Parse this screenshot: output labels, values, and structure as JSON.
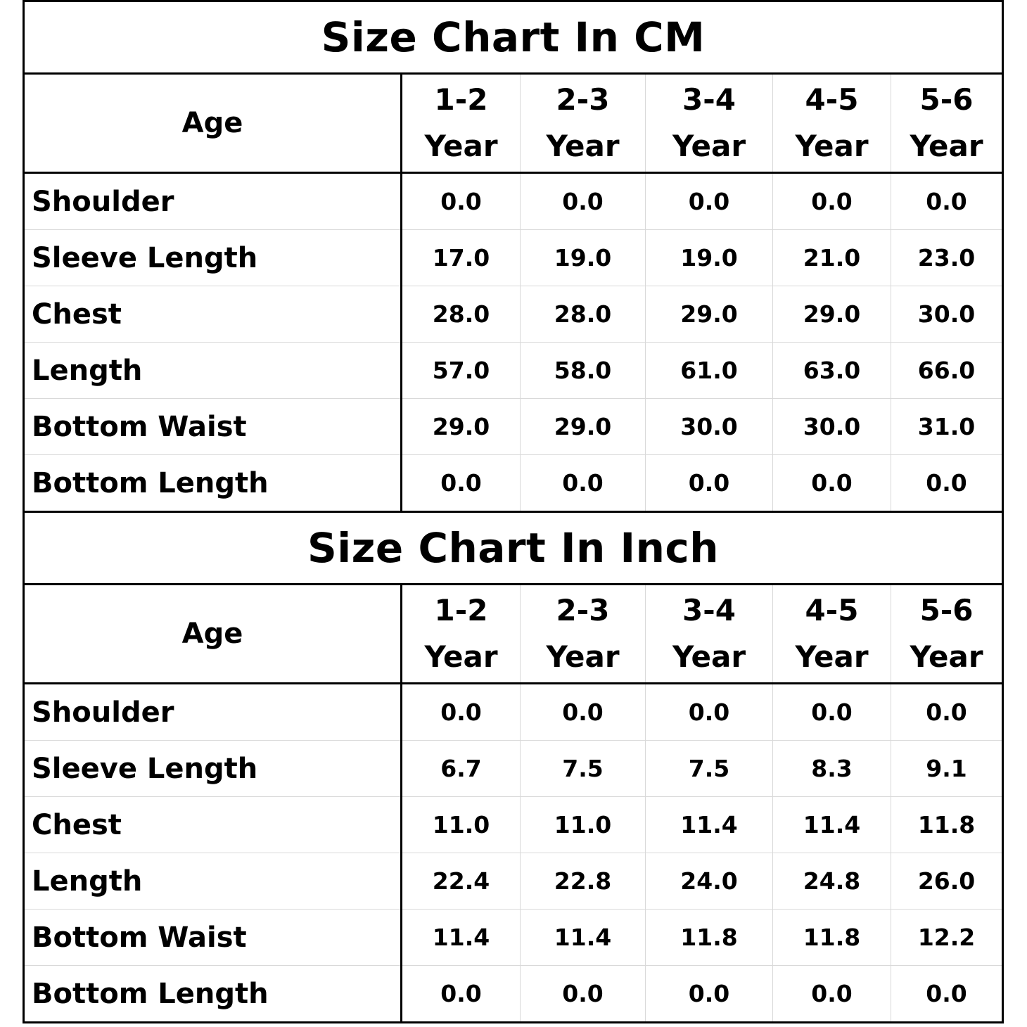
{
  "cm_table": {
    "title": "Size Chart In CM",
    "age_label": "Age",
    "columns": [
      {
        "range": "1-2",
        "unit": "Year"
      },
      {
        "range": "2-3",
        "unit": "Year"
      },
      {
        "range": "3-4",
        "unit": "Year"
      },
      {
        "range": "4-5",
        "unit": "Year"
      },
      {
        "range": "5-6",
        "unit": "Year"
      }
    ],
    "rows": [
      {
        "label": "Shoulder",
        "values": [
          "0.0",
          "0.0",
          "0.0",
          "0.0",
          "0.0"
        ]
      },
      {
        "label": "Sleeve Length",
        "values": [
          "17.0",
          "19.0",
          "19.0",
          "21.0",
          "23.0"
        ]
      },
      {
        "label": "Chest",
        "values": [
          "28.0",
          "28.0",
          "29.0",
          "29.0",
          "30.0"
        ]
      },
      {
        "label": "Length",
        "values": [
          "57.0",
          "58.0",
          "61.0",
          "63.0",
          "66.0"
        ]
      },
      {
        "label": "Bottom Waist",
        "values": [
          "29.0",
          "29.0",
          "30.0",
          "30.0",
          "31.0"
        ]
      },
      {
        "label": "Bottom Length",
        "values": [
          "0.0",
          "0.0",
          "0.0",
          "0.0",
          "0.0"
        ]
      }
    ]
  },
  "inch_table": {
    "title": "Size Chart In Inch",
    "age_label": "Age",
    "columns": [
      {
        "range": "1-2",
        "unit": "Year"
      },
      {
        "range": "2-3",
        "unit": "Year"
      },
      {
        "range": "3-4",
        "unit": "Year"
      },
      {
        "range": "4-5",
        "unit": "Year"
      },
      {
        "range": "5-6",
        "unit": "Year"
      }
    ],
    "rows": [
      {
        "label": "Shoulder",
        "values": [
          "0.0",
          "0.0",
          "0.0",
          "0.0",
          "0.0"
        ]
      },
      {
        "label": "Sleeve Length",
        "values": [
          "6.7",
          "7.5",
          "7.5",
          "8.3",
          "9.1"
        ]
      },
      {
        "label": "Chest",
        "values": [
          "11.0",
          "11.0",
          "11.4",
          "11.4",
          "11.8"
        ]
      },
      {
        "label": "Length",
        "values": [
          "22.4",
          "22.8",
          "24.0",
          "24.8",
          "26.0"
        ]
      },
      {
        "label": "Bottom Waist",
        "values": [
          "11.4",
          "11.4",
          "11.8",
          "11.8",
          "12.2"
        ]
      },
      {
        "label": "Bottom Length",
        "values": [
          "0.0",
          "0.0",
          "0.0",
          "0.0",
          "0.0"
        ]
      }
    ]
  }
}
